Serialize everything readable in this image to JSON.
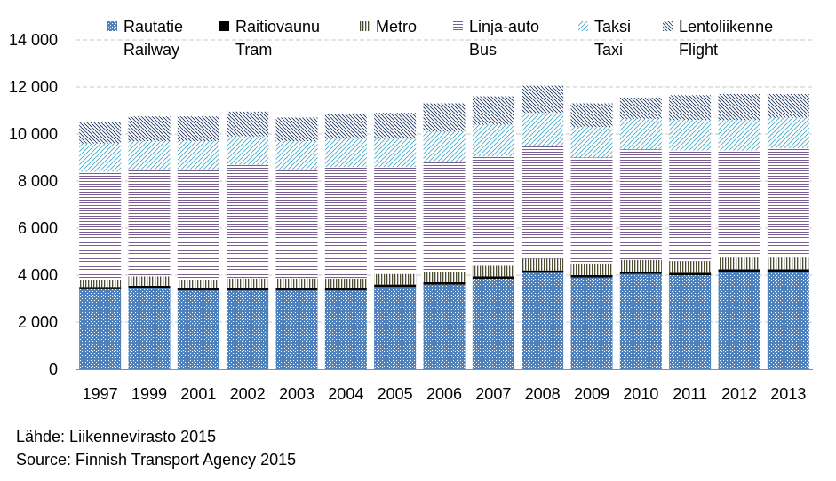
{
  "chart_data": {
    "type": "bar",
    "stacked": true,
    "categories": [
      "1997",
      "1999",
      "2001",
      "2002",
      "2003",
      "2004",
      "2005",
      "2006",
      "2007",
      "2008",
      "2009",
      "2010",
      "2011",
      "2012",
      "2013"
    ],
    "series": [
      {
        "name": "Rautatie",
        "name2": "Railway",
        "color": "#4f81bd",
        "pattern": "dots",
        "values": [
          3400,
          3450,
          3350,
          3350,
          3350,
          3350,
          3500,
          3600,
          3850,
          4100,
          3900,
          4050,
          4000,
          4150,
          4150
        ]
      },
      {
        "name": "Raitiovaunu",
        "name2": "Tram",
        "color": "#000000",
        "pattern": "solid",
        "values": [
          100,
          100,
          100,
          100,
          100,
          100,
          100,
          100,
          100,
          100,
          100,
          100,
          100,
          100,
          100
        ]
      },
      {
        "name": "Metro",
        "name2": "",
        "color": "#4d4d33",
        "pattern": "vertical",
        "values": [
          300,
          400,
          350,
          400,
          400,
          400,
          450,
          450,
          450,
          500,
          500,
          500,
          500,
          500,
          500
        ]
      },
      {
        "name": "Linja-auto",
        "name2": "Bus",
        "color": "#7a5f92",
        "pattern": "horizontal",
        "values": [
          4600,
          4550,
          4700,
          4850,
          4650,
          4750,
          4550,
          4650,
          4650,
          4800,
          4500,
          4700,
          4700,
          4550,
          4650
        ]
      },
      {
        "name": "Taksi",
        "name2": "Taxi",
        "color": "#4bacc6",
        "pattern": "diagonal-up",
        "values": [
          1200,
          1200,
          1200,
          1200,
          1200,
          1200,
          1200,
          1300,
          1350,
          1400,
          1300,
          1300,
          1300,
          1300,
          1300
        ]
      },
      {
        "name": "Lentoliikenne",
        "name2": "Flight",
        "color": "#1f3864",
        "pattern": "diagonal-down",
        "values": [
          900,
          1050,
          1050,
          1050,
          1000,
          1050,
          1100,
          1200,
          1200,
          1150,
          1000,
          900,
          1050,
          1100,
          1000
        ]
      }
    ],
    "ylim": [
      0,
      14000
    ],
    "yticks": [
      0,
      2000,
      4000,
      6000,
      8000,
      10000,
      12000,
      14000
    ],
    "ytick_labels": [
      "0",
      "2 000",
      "4 000",
      "6 000",
      "8 000",
      "10 000",
      "12 000",
      "14 000"
    ],
    "grid": true,
    "legend": "top",
    "title": "",
    "xlabel": "",
    "ylabel": ""
  },
  "source": {
    "line1": "Lähde: Liikennevirasto 2015",
    "line2": "Source: Finnish Transport Agency 2015"
  }
}
